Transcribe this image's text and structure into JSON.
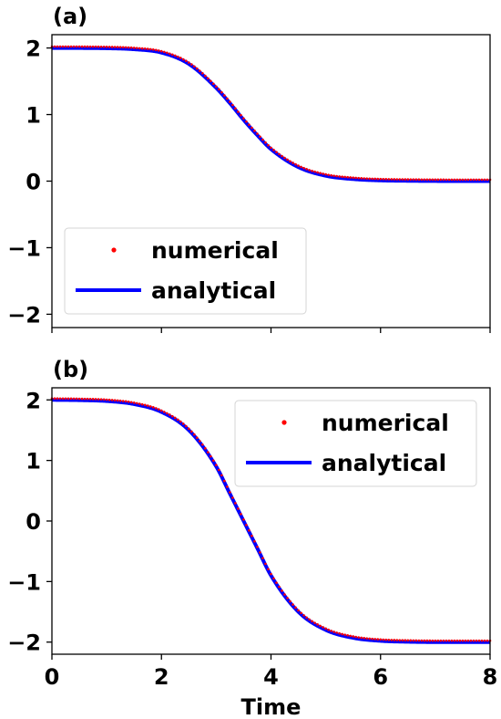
{
  "chart_data": [
    {
      "type": "line",
      "panel_label": "(a)",
      "xlabel": "",
      "ylabel": "",
      "xlim": [
        0,
        8
      ],
      "ylim": [
        -2.2,
        2.2
      ],
      "xticks": [
        0,
        2,
        4,
        6,
        8
      ],
      "xtick_labels_shown": false,
      "yticks": [
        -2,
        -1,
        0,
        1,
        2
      ],
      "ytick_labels": [
        "−2",
        "−1",
        "0",
        "1",
        "2"
      ],
      "grid": false,
      "legend_position": "lower-left",
      "x": [
        0,
        0.5,
        1,
        1.5,
        2,
        2.5,
        3,
        3.25,
        3.5,
        3.75,
        4,
        4.5,
        5,
        5.5,
        6,
        6.5,
        7,
        7.5,
        8
      ],
      "series": [
        {
          "name": "numerical",
          "style": "dots",
          "color": "#ff0000",
          "values": [
            2.0,
            1.999,
            1.995,
            1.98,
            1.93,
            1.76,
            1.4,
            1.17,
            0.92,
            0.69,
            0.48,
            0.21,
            0.08,
            0.03,
            0.01,
            0.004,
            0.001,
            0.0,
            0.0
          ]
        },
        {
          "name": "analytical",
          "style": "line",
          "color": "#0000ff",
          "values": [
            2.0,
            1.999,
            1.995,
            1.98,
            1.93,
            1.76,
            1.4,
            1.17,
            0.92,
            0.69,
            0.48,
            0.21,
            0.08,
            0.03,
            0.01,
            0.004,
            0.001,
            0.0,
            0.0
          ]
        }
      ]
    },
    {
      "type": "line",
      "panel_label": "(b)",
      "xlabel": "Time",
      "ylabel": "",
      "xlim": [
        0,
        8
      ],
      "ylim": [
        -2.2,
        2.2
      ],
      "xticks": [
        0,
        2,
        4,
        6,
        8
      ],
      "xtick_labels": [
        "0",
        "2",
        "4",
        "6",
        "8"
      ],
      "xtick_labels_shown": true,
      "yticks": [
        -2,
        -1,
        0,
        1,
        2
      ],
      "ytick_labels": [
        "−2",
        "−1",
        "0",
        "1",
        "2"
      ],
      "grid": false,
      "legend_position": "upper-right",
      "x": [
        0,
        0.5,
        1,
        1.5,
        2,
        2.5,
        3,
        3.25,
        3.5,
        3.75,
        4,
        4.5,
        5,
        5.5,
        6,
        6.5,
        7,
        7.5,
        8
      ],
      "series": [
        {
          "name": "numerical",
          "style": "dots",
          "color": "#ff0000",
          "values": [
            2.0,
            1.995,
            1.98,
            1.93,
            1.8,
            1.5,
            0.9,
            0.45,
            0.0,
            -0.45,
            -0.9,
            -1.5,
            -1.8,
            -1.93,
            -1.98,
            -1.995,
            -2.0,
            -2.0,
            -2.0
          ]
        },
        {
          "name": "analytical",
          "style": "line",
          "color": "#0000ff",
          "values": [
            2.0,
            1.995,
            1.98,
            1.93,
            1.8,
            1.5,
            0.9,
            0.45,
            0.0,
            -0.45,
            -0.9,
            -1.5,
            -1.8,
            -1.93,
            -1.98,
            -1.995,
            -2.0,
            -2.0,
            -2.0
          ]
        }
      ]
    }
  ]
}
